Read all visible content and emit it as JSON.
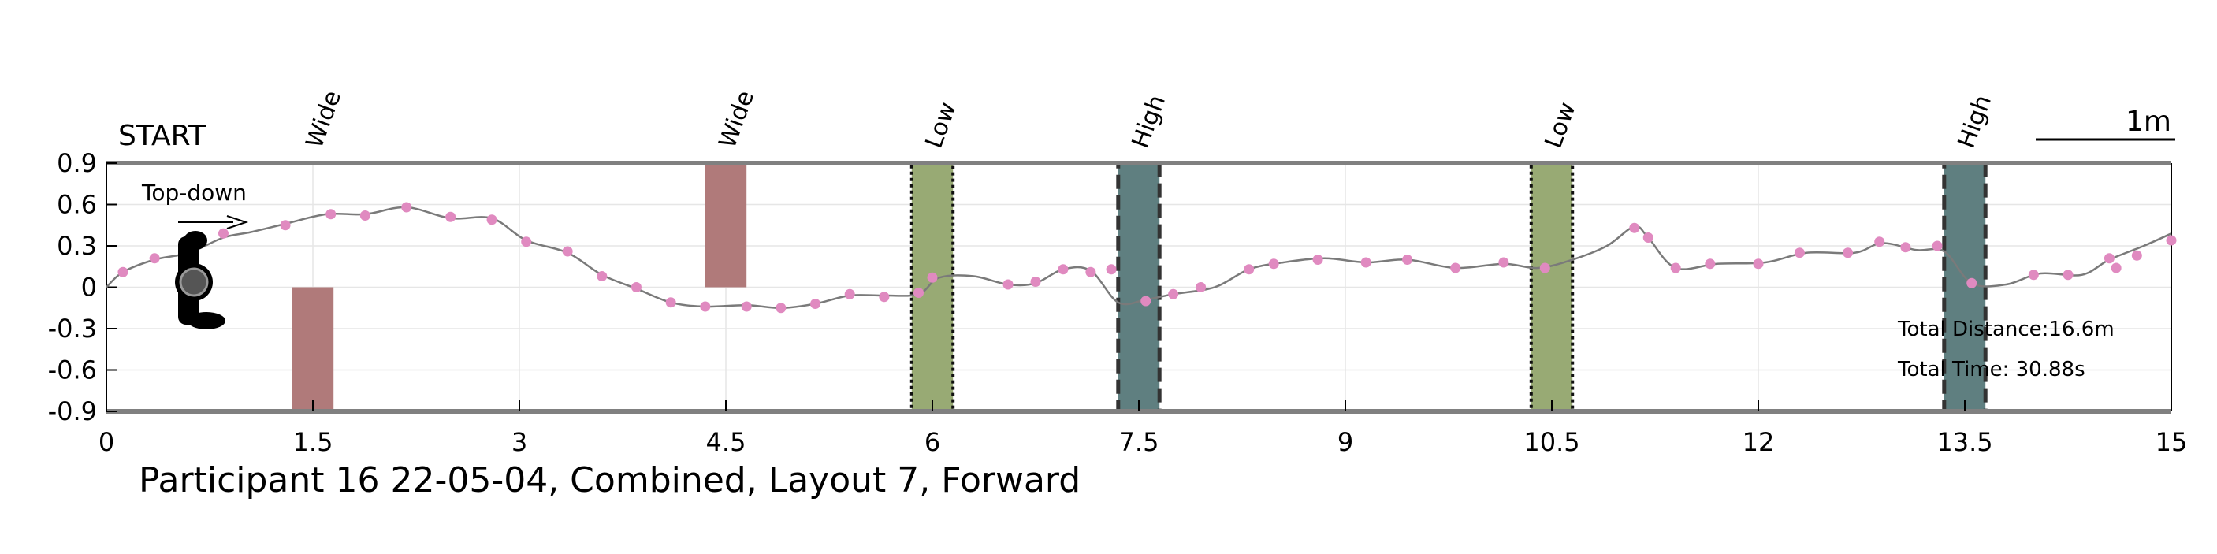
{
  "chart_data": {
    "type": "line",
    "title": "Participant 16 22-05-04, Combined, Layout 7, Forward",
    "start_label": "START",
    "view_label": "Top-down",
    "scale_label": "1m",
    "xlim": [
      0,
      15
    ],
    "ylim": [
      -0.9,
      0.9
    ],
    "x_ticks": [
      0,
      1.5,
      3,
      4.5,
      6,
      7.5,
      9,
      10.5,
      12,
      13.5,
      15
    ],
    "x_tick_labels": [
      "0",
      "1.5",
      "3",
      "4.5",
      "6",
      "7.5",
      "9",
      "10.5",
      "12",
      "13.5",
      "15"
    ],
    "y_ticks": [
      0.9,
      0.6,
      0.3,
      0,
      -0.3,
      -0.6,
      -0.9
    ],
    "y_tick_labels": [
      "0.9",
      "0.6",
      "0.3",
      "0",
      "-0.3",
      "-0.6",
      "-0.9"
    ],
    "grid": true,
    "colors": {
      "wide": "#b07a7a",
      "low": "#98aa74",
      "high": "#5f7f80",
      "trajectory": "#7a7a7a",
      "markers": "#e08ac0"
    },
    "obstacles": [
      {
        "label": "Wide",
        "type": "wide",
        "x0": 1.35,
        "x1": 1.65,
        "y0": -0.9,
        "y1": 0
      },
      {
        "label": "Wide",
        "type": "wide",
        "x0": 4.35,
        "x1": 4.65,
        "y0": 0,
        "y1": 0.9
      },
      {
        "label": "Low",
        "type": "low",
        "x0": 5.85,
        "x1": 6.15,
        "y0": -0.9,
        "y1": 0.9
      },
      {
        "label": "High",
        "type": "high",
        "x0": 7.35,
        "x1": 7.65,
        "y0": -0.9,
        "y1": 0.9
      },
      {
        "label": "Low",
        "type": "low",
        "x0": 10.35,
        "x1": 10.65,
        "y0": -0.9,
        "y1": 0.9
      },
      {
        "label": "High",
        "type": "high",
        "x0": 13.35,
        "x1": 13.65,
        "y0": -0.9,
        "y1": 0.9
      }
    ],
    "trajectory": {
      "x": [
        0,
        0.12,
        0.35,
        0.6,
        0.85,
        1.05,
        1.3,
        1.6,
        1.88,
        2.18,
        2.5,
        2.8,
        3.05,
        3.35,
        3.6,
        3.85,
        4.1,
        4.35,
        4.65,
        4.9,
        5.15,
        5.4,
        5.65,
        5.9,
        6.05,
        6.3,
        6.55,
        6.75,
        6.95,
        7.15,
        7.35,
        7.55,
        7.75,
        8.05,
        8.3,
        8.55,
        8.85,
        9.15,
        9.45,
        9.8,
        10.15,
        10.4,
        10.65,
        10.9,
        11.1,
        11.2,
        11.4,
        11.7,
        12.05,
        12.35,
        12.7,
        12.9,
        13.15,
        13.35,
        13.55,
        13.8,
        14.05,
        14.35,
        14.55,
        14.8,
        15
      ],
      "y": [
        0,
        0.11,
        0.2,
        0.25,
        0.36,
        0.4,
        0.46,
        0.53,
        0.53,
        0.58,
        0.5,
        0.5,
        0.34,
        0.25,
        0.09,
        -0.01,
        -0.11,
        -0.14,
        -0.13,
        -0.15,
        -0.12,
        -0.06,
        -0.06,
        -0.05,
        0.07,
        0.08,
        0.02,
        0.03,
        0.13,
        0.12,
        -0.11,
        -0.09,
        -0.05,
        0.0,
        0.13,
        0.18,
        0.21,
        0.18,
        0.2,
        0.14,
        0.17,
        0.14,
        0.2,
        0.3,
        0.44,
        0.36,
        0.14,
        0.17,
        0.18,
        0.25,
        0.25,
        0.32,
        0.27,
        0.26,
        0.03,
        0.02,
        0.1,
        0.09,
        0.2,
        0.3,
        0.39
      ]
    },
    "markers": {
      "x": [
        0.12,
        0.35,
        0.85,
        1.3,
        1.63,
        1.88,
        2.18,
        2.5,
        2.8,
        3.05,
        3.35,
        3.6,
        3.85,
        4.1,
        4.35,
        4.65,
        4.9,
        5.15,
        5.4,
        5.65,
        5.9,
        6.0,
        6.55,
        6.75,
        6.95,
        7.15,
        7.3,
        7.55,
        7.75,
        7.95,
        8.3,
        8.48,
        8.8,
        9.15,
        9.45,
        9.8,
        10.15,
        10.45,
        11.1,
        11.2,
        11.4,
        11.65,
        12.0,
        12.3,
        12.65,
        12.88,
        13.07,
        13.3,
        13.55,
        14.0,
        14.25,
        14.55,
        14.6,
        14.75,
        15.0
      ],
      "y": [
        0.11,
        0.21,
        0.39,
        0.45,
        0.53,
        0.52,
        0.58,
        0.51,
        0.49,
        0.33,
        0.26,
        0.08,
        0.0,
        -0.11,
        -0.14,
        -0.14,
        -0.15,
        -0.12,
        -0.05,
        -0.07,
        -0.04,
        0.07,
        0.02,
        0.04,
        0.13,
        0.11,
        0.13,
        -0.1,
        -0.05,
        0.0,
        0.13,
        0.17,
        0.2,
        0.18,
        0.2,
        0.14,
        0.18,
        0.14,
        0.43,
        0.36,
        0.14,
        0.17,
        0.17,
        0.25,
        0.25,
        0.33,
        0.29,
        0.3,
        0.03,
        0.09,
        0.09,
        0.21,
        0.14,
        0.23,
        0.34
      ]
    },
    "annotations": {
      "total_distance": "Total Distance:16.6m",
      "total_time": "Total Time: 30.88s"
    }
  }
}
